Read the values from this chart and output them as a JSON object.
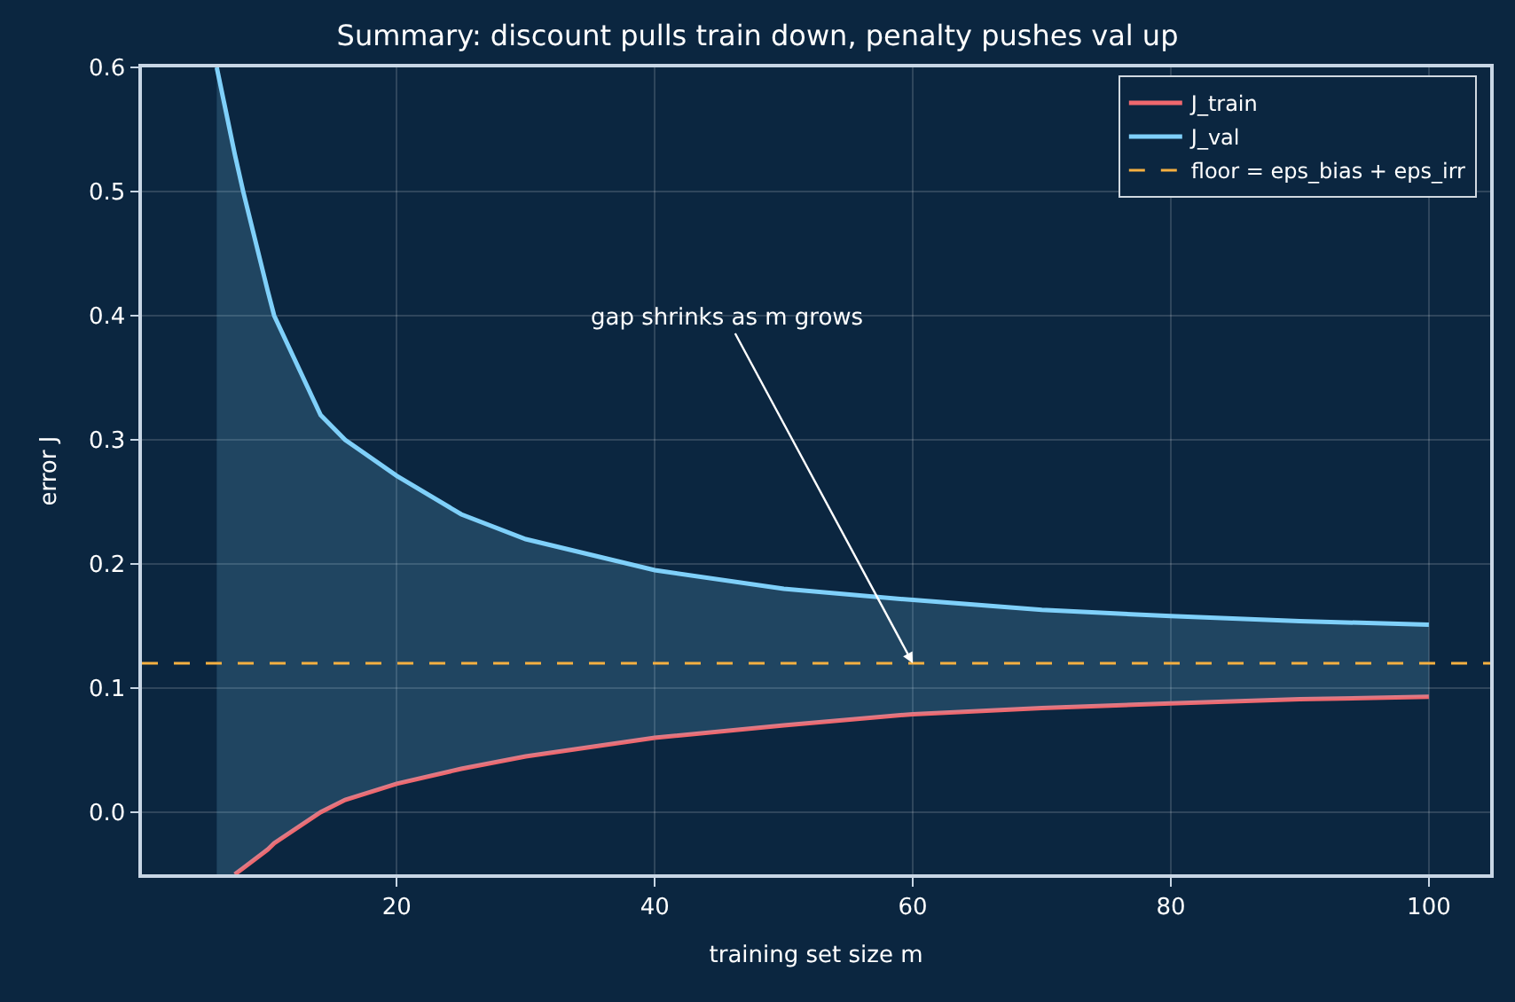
{
  "chart_data": {
    "type": "line",
    "title": "Summary: discount pulls train down, penalty pushes val up",
    "xlabel": "training set size m",
    "ylabel": "error J",
    "series": [
      {
        "name": "J_train",
        "color": "#f0686e",
        "x": [
          7.45,
          8.1,
          10,
          10.5,
          14.1,
          16,
          20,
          25,
          30,
          40,
          50,
          60,
          70,
          80,
          90,
          100
        ],
        "values": [
          -0.05,
          -0.045,
          -0.03,
          -0.025,
          0.0,
          0.01,
          0.023,
          0.035,
          0.045,
          0.06,
          0.07,
          0.079,
          0.084,
          0.0876,
          0.091,
          0.093
        ]
      },
      {
        "name": "J_val",
        "color": "#7fd0fa",
        "x": [
          6.05,
          7.45,
          8.1,
          10,
          10.5,
          14.1,
          16,
          20,
          25,
          30,
          40,
          50,
          60,
          70,
          80,
          90,
          100
        ],
        "values": [
          0.6,
          0.53,
          0.5,
          0.42,
          0.4,
          0.32,
          0.3,
          0.271,
          0.24,
          0.22,
          0.195,
          0.18,
          0.171,
          0.163,
          0.158,
          0.154,
          0.151
        ],
        "lower": [
          -0.05,
          -0.05,
          -0.045,
          -0.03,
          -0.025,
          0.0,
          0.01,
          0.023,
          0.035,
          0.045,
          0.06,
          0.07,
          0.079,
          0.084,
          0.0876,
          0.091,
          0.093
        ],
        "upper": [
          0.6,
          0.53,
          0.5,
          0.42,
          0.4,
          0.32,
          0.3,
          0.271,
          0.24,
          0.22,
          0.195,
          0.18,
          0.171,
          0.163,
          0.158,
          0.154,
          0.151
        ]
      }
    ],
    "ref_lines": [
      {
        "axis": "y",
        "value": 0.12,
        "label": "floor = eps_bias + eps_irr",
        "color": "#f5b041",
        "line_style": "dashed"
      }
    ],
    "annotations": [
      {
        "text": "gap shrinks as m grows",
        "x": 60,
        "y": 0.12
      }
    ],
    "xlim": [
      0.25,
      104.75
    ],
    "xticks": [
      20,
      40,
      60,
      80,
      100
    ],
    "ylim": [
      -0.05,
      0.6
    ],
    "yticks": [
      {
        "value": 0,
        "label": "0.0"
      },
      0.1,
      0.2,
      0.3,
      0.4,
      0.5,
      0.6
    ],
    "grid": true,
    "legend": "top right",
    "line_style": "solid",
    "marker": "none"
  }
}
